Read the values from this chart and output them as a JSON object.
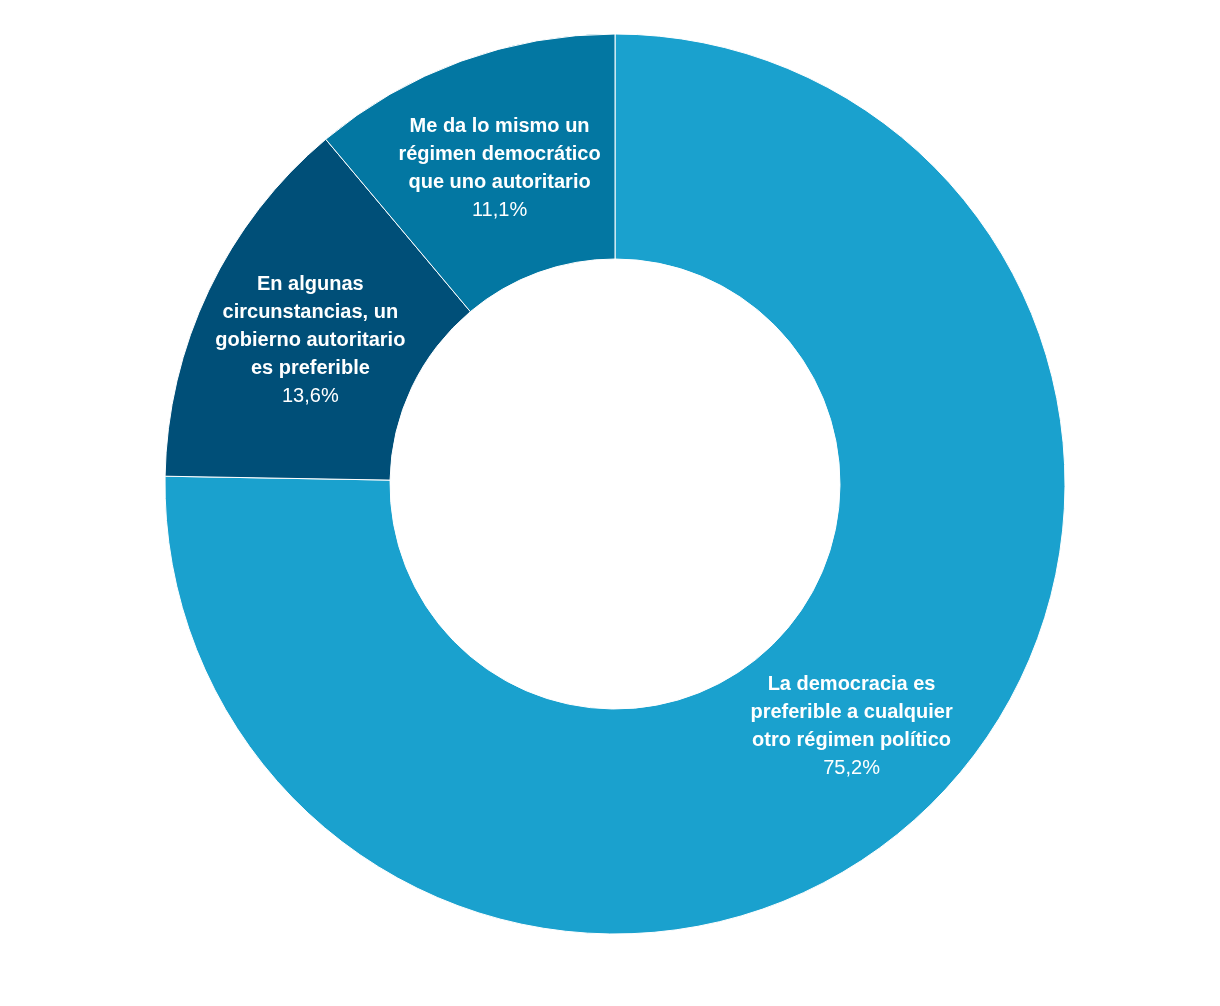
{
  "chart_data": {
    "type": "donut",
    "categories": [
      "La democracia es preferible a cualquier otro régimen político",
      "En algunas circunstancias, un gobierno autoritario es preferible",
      "Me da lo mismo un régimen democrático que uno autoritario"
    ],
    "values": [
      75.2,
      13.6,
      11.1
    ],
    "value_labels": [
      "75,2%",
      "13,6%",
      "11,1%"
    ],
    "colors": [
      "#1aa1ce",
      "#004f78",
      "#0377a2"
    ],
    "legend": false
  }
}
